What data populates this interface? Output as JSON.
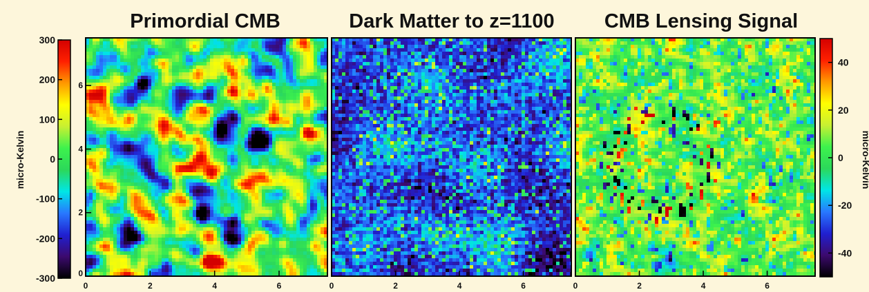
{
  "background": "#fdf6db",
  "chart_data": [
    {
      "type": "heatmap",
      "title": "Primordial CMB",
      "x_ticks": [
        "0",
        "2",
        "4",
        "6"
      ],
      "y_ticks": [
        "0",
        "2",
        "4",
        "6"
      ],
      "xlim": [
        0,
        7.5
      ],
      "ylim": [
        0,
        7.5
      ],
      "colorbar": {
        "label": "micro-Kelvin",
        "side": "left",
        "range": [
          -300,
          300
        ],
        "ticks": [
          "300",
          "200",
          "100",
          "0",
          "-100",
          "-200",
          "-300"
        ],
        "tick_values": [
          300,
          200,
          100,
          0,
          -100,
          -200,
          -300
        ]
      }
    },
    {
      "type": "heatmap",
      "title": "Dark Matter to z=1100",
      "x_ticks": [
        "0",
        "2",
        "4",
        "6"
      ],
      "xlim": [
        0,
        7.5
      ]
    },
    {
      "type": "heatmap",
      "title": "CMB Lensing Signal",
      "x_ticks": [
        "0",
        "2",
        "4",
        "6"
      ],
      "xlim": [
        0,
        7.5
      ],
      "colorbar": {
        "label": "micro-Kelvin",
        "side": "right",
        "range": [
          -50,
          50
        ],
        "ticks": [
          "40",
          "20",
          "0",
          "-20",
          "-40"
        ],
        "tick_values": [
          40,
          20,
          0,
          -20,
          -40
        ]
      }
    }
  ],
  "colormap": [
    "#000000",
    "#3c0a6e",
    "#2020d0",
    "#2878ff",
    "#00e6e6",
    "#2cd85a",
    "#3df24d",
    "#c8f032",
    "#ffff00",
    "#ff9900",
    "#ff2000",
    "#d40000"
  ]
}
